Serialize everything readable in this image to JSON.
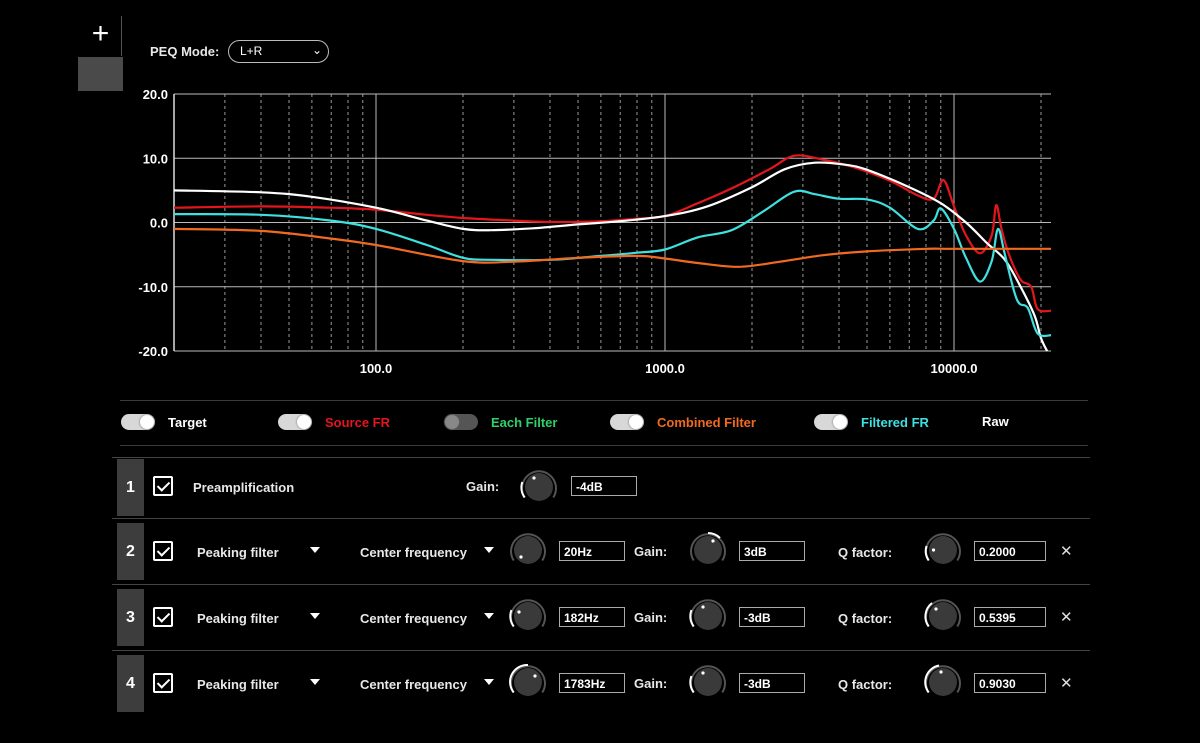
{
  "toolbar": {
    "add_label": "+"
  },
  "peq": {
    "mode_label": "PEQ Mode:",
    "mode_value": "L+R",
    "mode_options": [
      "L+R"
    ]
  },
  "chart_data": {
    "type": "line",
    "x_scale": "log",
    "xlim": [
      20,
      22000
    ],
    "ylim": [
      -20,
      20
    ],
    "y_ticks": [
      20,
      10,
      0,
      -10,
      -20
    ],
    "y_tick_labels": [
      "20.0",
      "10.0",
      "0.0",
      "-10.0",
      "-20.0"
    ],
    "x_ticks": [
      100,
      1000,
      10000
    ],
    "x_tick_labels": [
      "100.0",
      "1000.0",
      "10000.0"
    ],
    "grid": true,
    "series": [
      {
        "name": "Source FR",
        "color": "#e3161d",
        "points": [
          [
            20,
            2.3
          ],
          [
            40,
            2.5
          ],
          [
            70,
            2.3
          ],
          [
            100,
            2
          ],
          [
            150,
            1.2
          ],
          [
            200,
            0.7
          ],
          [
            300,
            0.3
          ],
          [
            400,
            0.1
          ],
          [
            600,
            0.2
          ],
          [
            800,
            0.6
          ],
          [
            1000,
            1
          ],
          [
            1300,
            3
          ],
          [
            1700,
            5.3
          ],
          [
            2300,
            8.3
          ],
          [
            2800,
            10.4
          ],
          [
            3500,
            9.8
          ],
          [
            4500,
            8.6
          ],
          [
            6000,
            6.5
          ],
          [
            7500,
            4.2
          ],
          [
            8500,
            3.7
          ],
          [
            9200,
            6.6
          ],
          [
            10000,
            2.5
          ],
          [
            11000,
            -2
          ],
          [
            12300,
            -4.8
          ],
          [
            13500,
            -2
          ],
          [
            14000,
            2.7
          ],
          [
            14600,
            -1
          ],
          [
            15500,
            -5
          ],
          [
            17000,
            -8.9
          ],
          [
            18500,
            -10
          ],
          [
            19500,
            -13.5
          ],
          [
            22000,
            -13.7
          ]
        ]
      },
      {
        "name": "Target",
        "color": "#ffffff",
        "points": [
          [
            20,
            5
          ],
          [
            40,
            4.7
          ],
          [
            60,
            4
          ],
          [
            100,
            2.3
          ],
          [
            150,
            0.3
          ],
          [
            200,
            -1
          ],
          [
            250,
            -1.2
          ],
          [
            350,
            -0.9
          ],
          [
            500,
            -0.3
          ],
          [
            700,
            0.2
          ],
          [
            1000,
            1
          ],
          [
            1400,
            2.5
          ],
          [
            2000,
            5.5
          ],
          [
            2600,
            8.3
          ],
          [
            3300,
            9.3
          ],
          [
            4200,
            9
          ],
          [
            5000,
            8.2
          ],
          [
            7000,
            5.5
          ],
          [
            9000,
            3
          ],
          [
            11000,
            0
          ],
          [
            13000,
            -3.2
          ],
          [
            15000,
            -5.8
          ],
          [
            17000,
            -10
          ],
          [
            19000,
            -14.5
          ],
          [
            20000,
            -18
          ],
          [
            21000,
            -20
          ]
        ]
      },
      {
        "name": "Filtered FR",
        "color": "#3ee0e0",
        "points": [
          [
            20,
            1.3
          ],
          [
            40,
            1.2
          ],
          [
            70,
            0.3
          ],
          [
            100,
            -1
          ],
          [
            150,
            -3.5
          ],
          [
            200,
            -5.5
          ],
          [
            250,
            -5.8
          ],
          [
            400,
            -5.8
          ],
          [
            600,
            -5.2
          ],
          [
            800,
            -4.7
          ],
          [
            1000,
            -4.2
          ],
          [
            1300,
            -2.3
          ],
          [
            1700,
            -1.2
          ],
          [
            2200,
            1.8
          ],
          [
            2800,
            4.8
          ],
          [
            3300,
            4.4
          ],
          [
            4000,
            3.7
          ],
          [
            5000,
            3.6
          ],
          [
            6000,
            2.3
          ],
          [
            7500,
            -1
          ],
          [
            8500,
            0.3
          ],
          [
            9000,
            2.2
          ],
          [
            10000,
            -1
          ],
          [
            11000,
            -5.5
          ],
          [
            12300,
            -9.2
          ],
          [
            13500,
            -6
          ],
          [
            14200,
            -1
          ],
          [
            15000,
            -5
          ],
          [
            16500,
            -12
          ],
          [
            18000,
            -13.3
          ],
          [
            19500,
            -17.3
          ],
          [
            22000,
            -17.5
          ]
        ]
      },
      {
        "name": "Combined Filter",
        "color": "#f26a21",
        "points": [
          [
            20,
            -1
          ],
          [
            40,
            -1.3
          ],
          [
            70,
            -2.5
          ],
          [
            100,
            -3.5
          ],
          [
            200,
            -6
          ],
          [
            300,
            -6.1
          ],
          [
            500,
            -5.5
          ],
          [
            800,
            -5.2
          ],
          [
            1000,
            -5.6
          ],
          [
            1300,
            -6.3
          ],
          [
            1800,
            -6.9
          ],
          [
            2500,
            -6.1
          ],
          [
            3500,
            -5.1
          ],
          [
            5000,
            -4.5
          ],
          [
            8000,
            -4.1
          ],
          [
            10000,
            -4.1
          ],
          [
            22000,
            -4.1
          ]
        ]
      }
    ]
  },
  "legend": {
    "items": [
      {
        "label": "Target",
        "color": "#ffffff",
        "toggle": "on"
      },
      {
        "label": "Source FR",
        "color": "#e3161d",
        "toggle": "on"
      },
      {
        "label": "Each Filter",
        "color": "#2ed06a",
        "toggle": "off"
      },
      {
        "label": "Combined Filter",
        "color": "#f26a21",
        "toggle": "on"
      },
      {
        "label": "Filtered FR",
        "color": "#3ee0e0",
        "toggle": "on"
      },
      {
        "label": "Raw",
        "color": "#ffffff",
        "toggle": "none"
      }
    ]
  },
  "preamp": {
    "index": "1",
    "label": "Preamplification",
    "gain_label": "Gain:",
    "gain_value": "-4dB",
    "enabled": true
  },
  "filters": [
    {
      "index": "2",
      "type": "Peaking filter",
      "param_label": "Center frequency",
      "freq": "20Hz",
      "gain_label": "Gain:",
      "gain": "3dB",
      "q_label": "Q factor:",
      "q": "0.2000",
      "enabled": true
    },
    {
      "index": "3",
      "type": "Peaking filter",
      "param_label": "Center frequency",
      "freq": "182Hz",
      "gain_label": "Gain:",
      "gain": "-3dB",
      "q_label": "Q factor:",
      "q": "0.5395",
      "enabled": true
    },
    {
      "index": "4",
      "type": "Peaking filter",
      "param_label": "Center frequency",
      "freq": "1783Hz",
      "gain_label": "Gain:",
      "gain": "-3dB",
      "q_label": "Q factor:",
      "q": "0.9030",
      "enabled": true
    }
  ],
  "icons": {
    "close": "close-icon",
    "dropdown": "triangle-down-icon",
    "knob": "knob-icon"
  }
}
